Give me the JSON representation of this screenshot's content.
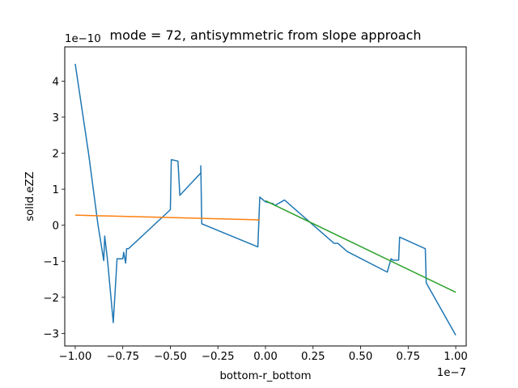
{
  "chart_data": {
    "type": "line",
    "title": "mode = 72, antisymmetric from slope approach",
    "xlabel": "bottom-r_bottom",
    "ylabel": "solid.eZZ",
    "x_offset_label": "1e−7",
    "y_offset_label": "1e−10",
    "xlim": [
      -1.055,
      1.055
    ],
    "ylim": [
      -3.35,
      4.95
    ],
    "x_ticks": [
      -1.0,
      -0.75,
      -0.5,
      -0.25,
      0.0,
      0.25,
      0.5,
      0.75,
      1.0
    ],
    "x_tick_labels": [
      "−1.00",
      "−0.75",
      "−0.50",
      "−0.25",
      "0.00",
      "0.25",
      "0.50",
      "0.75",
      "1.00"
    ],
    "y_ticks": [
      -3,
      -2,
      -1,
      0,
      1,
      2,
      3,
      4
    ],
    "y_tick_labels": [
      "−3",
      "−2",
      "−1",
      "0",
      "1",
      "2",
      "3",
      "4"
    ],
    "grid": false,
    "series": [
      {
        "color": "#1f77b4",
        "x": [
          -1.0,
          -0.93,
          -0.88,
          -0.85,
          -0.845,
          -0.83,
          -0.8,
          -0.78,
          -0.75,
          -0.745,
          -0.735,
          -0.73,
          -0.72,
          -0.5,
          -0.495,
          -0.46,
          -0.45,
          -0.34,
          -0.34,
          -0.335,
          -0.04,
          -0.03,
          0.0,
          0.04,
          0.05,
          0.1,
          0.36,
          0.38,
          0.43,
          0.64,
          0.66,
          0.67,
          0.7,
          0.705,
          0.84,
          0.845,
          1.0
        ],
        "y": [
          4.48,
          2.0,
          0.0,
          -0.98,
          -0.3,
          -0.98,
          -2.7,
          -0.93,
          -0.93,
          -0.75,
          -1.05,
          -0.65,
          -0.65,
          0.43,
          1.82,
          1.78,
          0.83,
          1.45,
          1.65,
          0.04,
          -0.6,
          0.78,
          0.65,
          0.6,
          0.55,
          0.7,
          -0.5,
          -0.5,
          -0.73,
          -1.3,
          -0.93,
          -0.97,
          -0.97,
          -0.33,
          -0.65,
          -1.6,
          -3.05
        ]
      },
      {
        "color": "#ff7f0e",
        "x": [
          -1.0,
          -0.03
        ],
        "y": [
          0.28,
          0.15
        ]
      },
      {
        "color": "#2ca02c",
        "x": [
          0.0,
          1.0
        ],
        "y": [
          0.68,
          -1.86
        ]
      }
    ]
  }
}
